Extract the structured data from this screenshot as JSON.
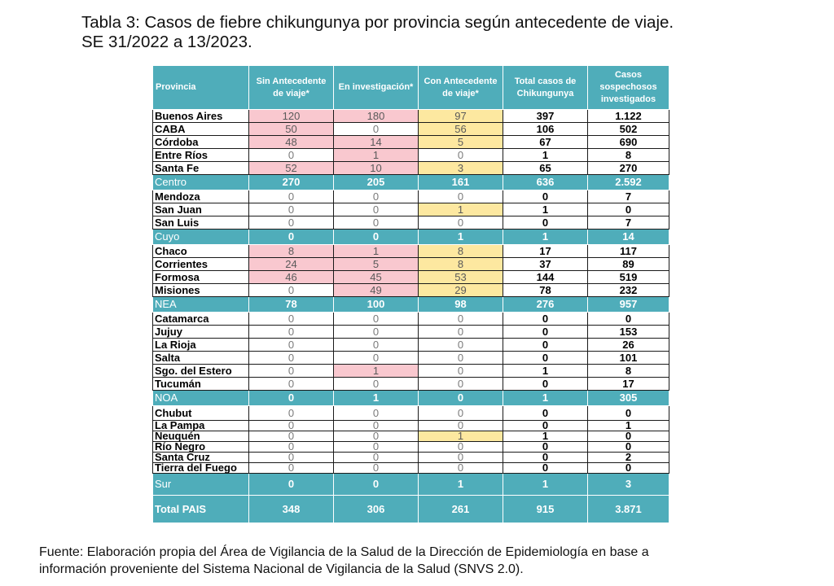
{
  "title": {
    "line1": "Tabla 3: Casos de fiebre chikungunya por provincia según antecedente de viaje.",
    "line2": "SE 31/2022 a 13/2023."
  },
  "table": {
    "headers": [
      "Provincia",
      "Sin Antecedente de viaje*",
      "En investigación*",
      "Con Antecedente de viaje*",
      "Total casos de Chikungunya",
      "Casos sospechosos investigados"
    ],
    "rows": [
      {
        "kind": "province",
        "h": "r-mid",
        "cells": [
          "Buenos Aires",
          "120",
          "180",
          "97",
          "397",
          "1.122"
        ],
        "colors": [
          "pink",
          "pink",
          "yellow"
        ]
      },
      {
        "kind": "province",
        "h": "r-mid",
        "cells": [
          "CABA",
          "50",
          "0",
          "56",
          "106",
          "502"
        ],
        "colors": [
          "pink",
          "",
          "yellow"
        ]
      },
      {
        "kind": "province",
        "h": "r-mid",
        "cells": [
          "Córdoba",
          "48",
          "14",
          "5",
          "67",
          "690"
        ],
        "colors": [
          "pink",
          "pink",
          "yellow"
        ]
      },
      {
        "kind": "province",
        "h": "r-mid",
        "cells": [
          "Entre Ríos",
          "0",
          "1",
          "0",
          "1",
          "8"
        ],
        "colors": [
          "",
          "pink",
          ""
        ]
      },
      {
        "kind": "province",
        "h": "r-mid",
        "cells": [
          "Santa Fe",
          "52",
          "10",
          "3",
          "65",
          "270"
        ],
        "colors": [
          "pink",
          "pink",
          "yellow"
        ]
      },
      {
        "kind": "region",
        "cells": [
          "Centro",
          "270",
          "205",
          "161",
          "636",
          "2.592"
        ]
      },
      {
        "kind": "province",
        "h": "r-mid",
        "cells": [
          "Mendoza",
          "0",
          "0",
          "0",
          "0",
          "7"
        ],
        "colors": [
          "",
          "",
          ""
        ]
      },
      {
        "kind": "province",
        "h": "r-mid",
        "cells": [
          "San Juan",
          "0",
          "0",
          "1",
          "1",
          "0"
        ],
        "colors": [
          "",
          "",
          "yellow"
        ]
      },
      {
        "kind": "province",
        "h": "r-mid",
        "cells": [
          "San Luis",
          "0",
          "0",
          "0",
          "0",
          "7"
        ],
        "colors": [
          "",
          "",
          ""
        ]
      },
      {
        "kind": "region",
        "cells": [
          "Cuyo",
          "0",
          "0",
          "1",
          "1",
          "14"
        ]
      },
      {
        "kind": "province",
        "h": "r-mid",
        "cells": [
          "Chaco",
          "8",
          "1",
          "8",
          "17",
          "117"
        ],
        "colors": [
          "pink",
          "pink",
          "yellow"
        ]
      },
      {
        "kind": "province",
        "h": "r-mid",
        "cells": [
          "Corrientes",
          "24",
          "5",
          "8",
          "37",
          "89"
        ],
        "colors": [
          "pink",
          "pink",
          "yellow"
        ]
      },
      {
        "kind": "province",
        "h": "r-mid",
        "cells": [
          "Formosa",
          "46",
          "45",
          "53",
          "144",
          "519"
        ],
        "colors": [
          "pink",
          "pink",
          "yellow"
        ]
      },
      {
        "kind": "province",
        "h": "r-mid",
        "cells": [
          "Misiones",
          "0",
          "49",
          "29",
          "78",
          "232"
        ],
        "colors": [
          "",
          "pink",
          "yellow"
        ]
      },
      {
        "kind": "region",
        "cells": [
          "NEA",
          "78",
          "100",
          "98",
          "276",
          "957"
        ]
      },
      {
        "kind": "province",
        "h": "r-mid",
        "cells": [
          "Catamarca",
          "0",
          "0",
          "0",
          "0",
          "0"
        ],
        "colors": [
          "",
          "",
          ""
        ]
      },
      {
        "kind": "province",
        "h": "r-mid",
        "cells": [
          "Jujuy",
          "0",
          "0",
          "0",
          "0",
          "153"
        ],
        "colors": [
          "",
          "",
          ""
        ]
      },
      {
        "kind": "province",
        "h": "r-mid",
        "cells": [
          "La Rioja",
          "0",
          "0",
          "0",
          "0",
          "26"
        ],
        "colors": [
          "",
          "",
          ""
        ]
      },
      {
        "kind": "province",
        "h": "r-mid",
        "cells": [
          "Salta",
          "0",
          "0",
          "0",
          "0",
          "101"
        ],
        "colors": [
          "",
          "",
          ""
        ]
      },
      {
        "kind": "province",
        "h": "r-mid",
        "cells": [
          "Sgo. del Estero",
          "0",
          "1",
          "0",
          "1",
          "8"
        ],
        "colors": [
          "",
          "pink",
          ""
        ]
      },
      {
        "kind": "province",
        "h": "r-mid",
        "cells": [
          "Tucumán",
          "0",
          "0",
          "0",
          "0",
          "17"
        ],
        "colors": [
          "",
          "",
          ""
        ]
      },
      {
        "kind": "region",
        "cells": [
          "NOA",
          "0",
          "1",
          "0",
          "1",
          "305"
        ]
      },
      {
        "kind": "province",
        "h": "r-tall",
        "cells": [
          "Chubut",
          "0",
          "0",
          "0",
          "0",
          "0"
        ],
        "colors": [
          "",
          "",
          ""
        ]
      },
      {
        "kind": "province",
        "h": "r-short",
        "cells": [
          "La Pampa",
          "0",
          "0",
          "0",
          "0",
          "1"
        ],
        "colors": [
          "",
          "",
          ""
        ]
      },
      {
        "kind": "province",
        "h": "r-short",
        "cells": [
          "Neuquén",
          "0",
          "0",
          "1",
          "1",
          "0"
        ],
        "colors": [
          "",
          "",
          "yellow"
        ]
      },
      {
        "kind": "province",
        "h": "r-short",
        "cells": [
          "Río Negro",
          "0",
          "0",
          "0",
          "0",
          "0"
        ],
        "colors": [
          "",
          "",
          ""
        ]
      },
      {
        "kind": "province",
        "h": "r-short",
        "cells": [
          "Santa Cruz",
          "0",
          "0",
          "0",
          "0",
          "2"
        ],
        "colors": [
          "",
          "",
          ""
        ]
      },
      {
        "kind": "province",
        "h": "r-short",
        "cells": [
          "Tierra del Fuego",
          "0",
          "0",
          "0",
          "0",
          "0"
        ],
        "colors": [
          "",
          "",
          ""
        ]
      },
      {
        "kind": "region",
        "tall": true,
        "cells": [
          "Sur",
          "0",
          "0",
          "1",
          "1",
          "3"
        ]
      },
      {
        "kind": "total",
        "cells": [
          "Total PAIS",
          "348",
          "306",
          "261",
          "915",
          "3.871"
        ]
      }
    ]
  },
  "source": {
    "line1": "Fuente: Elaboración propia del Área de Vigilancia de la Salud de la Dirección de Epidemiología en base a",
    "line2": "información proveniente del Sistema Nacional de Vigilancia de la Salud (SNVS 2.0)."
  },
  "colors": {
    "header_teal": "#4fadba",
    "highlight_pink": "#f9c8cf",
    "highlight_yellow": "#fde8a0"
  }
}
